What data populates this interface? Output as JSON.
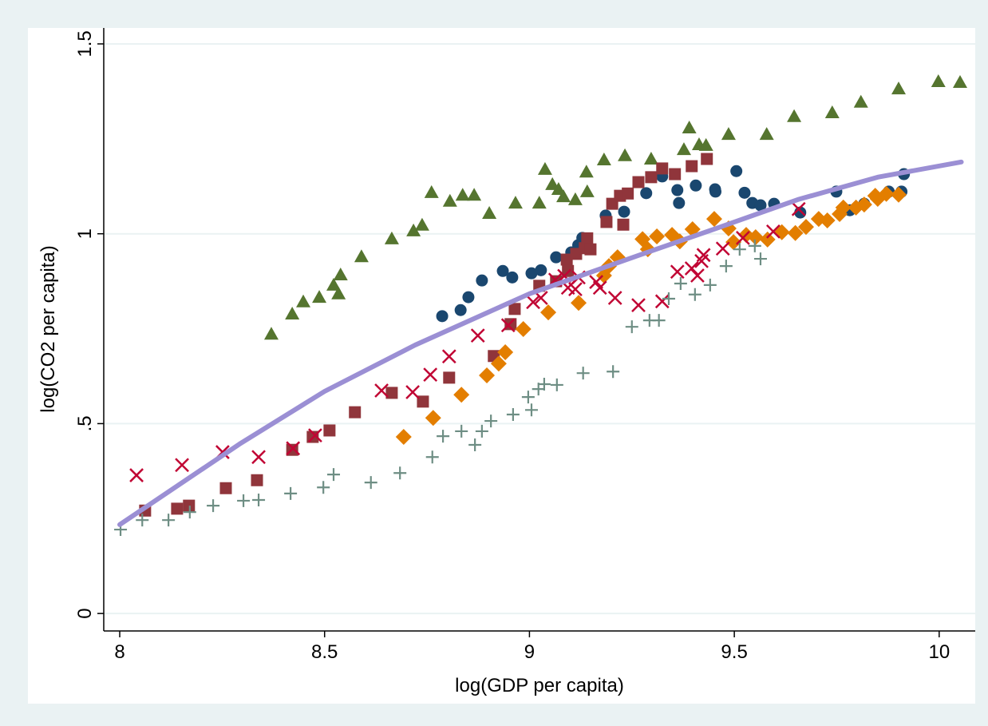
{
  "chart_data": {
    "type": "scatter",
    "x_label": "log(GDP per capita)",
    "y_label": "log(CO2 per capita)",
    "xlim": [
      7.961,
      10.088
    ],
    "ylim": [
      -0.046,
      1.542
    ],
    "xticks": [
      8,
      8.5,
      9,
      9.5,
      10
    ],
    "yticks": [
      0,
      {
        "value": 0.5,
        "label": ".5"
      },
      1,
      1.5
    ],
    "grid": true,
    "series": [
      {
        "marker": "triangle",
        "color": "#55752f",
        "x": [
          8.37,
          8.421,
          8.448,
          8.487,
          8.522,
          8.534,
          8.539,
          8.59,
          8.664,
          8.717,
          8.738,
          8.761,
          8.806,
          8.837,
          8.865,
          8.902,
          8.966,
          9.024,
          9.038,
          9.056,
          9.071,
          9.083,
          9.112,
          9.139,
          9.141,
          9.182,
          9.233,
          9.297,
          9.377,
          9.39,
          9.414,
          9.431,
          9.486,
          9.579,
          9.646,
          9.739,
          9.809,
          9.901,
          9.998,
          10.051
        ],
        "values": [
          0.736,
          0.789,
          0.821,
          0.833,
          0.865,
          0.842,
          0.892,
          0.94,
          0.987,
          1.008,
          1.023,
          1.109,
          1.086,
          1.102,
          1.102,
          1.054,
          1.081,
          1.081,
          1.17,
          1.13,
          1.117,
          1.098,
          1.09,
          1.163,
          1.111,
          1.195,
          1.206,
          1.197,
          1.222,
          1.279,
          1.235,
          1.233,
          1.262,
          1.262,
          1.309,
          1.319,
          1.347,
          1.382,
          1.401,
          1.399
        ]
      },
      {
        "marker": "circle",
        "color": "#1a476f",
        "x": [
          8.787,
          8.832,
          8.851,
          8.884,
          8.935,
          8.958,
          9.005,
          9.028,
          9.065,
          9.102,
          9.119,
          9.129,
          9.186,
          9.231,
          9.285,
          9.324,
          9.361,
          9.365,
          9.406,
          9.453,
          9.454,
          9.505,
          9.525,
          9.544,
          9.564,
          9.597,
          9.661,
          9.749,
          9.782,
          9.817,
          9.85,
          9.877,
          9.908,
          9.914
        ],
        "values": [
          0.783,
          0.799,
          0.833,
          0.877,
          0.902,
          0.885,
          0.896,
          0.904,
          0.938,
          0.951,
          0.97,
          0.989,
          1.048,
          1.058,
          1.107,
          1.151,
          1.115,
          1.081,
          1.127,
          1.117,
          1.111,
          1.165,
          1.108,
          1.081,
          1.075,
          1.079,
          1.056,
          1.111,
          1.062,
          1.079,
          1.094,
          1.111,
          1.111,
          1.157
        ]
      },
      {
        "marker": "square",
        "color": "#90353b",
        "x": [
          8.062,
          8.14,
          8.169,
          8.259,
          8.335,
          8.421,
          8.471,
          8.512,
          8.574,
          8.664,
          8.74,
          8.804,
          8.913,
          8.954,
          8.964,
          9.024,
          9.065,
          9.091,
          9.094,
          9.114,
          9.135,
          9.141,
          9.149,
          9.188,
          9.202,
          9.221,
          9.229,
          9.24,
          9.266,
          9.297,
          9.324,
          9.355,
          9.396,
          9.433
        ],
        "values": [
          0.271,
          0.276,
          0.284,
          0.33,
          0.351,
          0.431,
          0.465,
          0.482,
          0.53,
          0.581,
          0.558,
          0.621,
          0.678,
          0.762,
          0.802,
          0.863,
          0.875,
          0.932,
          0.902,
          0.947,
          0.962,
          0.988,
          0.959,
          1.031,
          1.079,
          1.1,
          1.024,
          1.106,
          1.136,
          1.149,
          1.172,
          1.157,
          1.178,
          1.197
        ]
      },
      {
        "marker": "diamond",
        "color": "#e37e00",
        "x": [
          8.693,
          8.765,
          8.834,
          8.896,
          8.925,
          8.941,
          8.985,
          9.046,
          9.12,
          9.182,
          9.194,
          9.215,
          9.276,
          9.289,
          9.311,
          9.348,
          9.367,
          9.398,
          9.451,
          9.486,
          9.498,
          9.529,
          9.552,
          9.581,
          9.616,
          9.649,
          9.675,
          9.706,
          9.727,
          9.757,
          9.766,
          9.797,
          9.817,
          9.844,
          9.85,
          9.871,
          9.901
        ],
        "values": [
          0.465,
          0.515,
          0.576,
          0.627,
          0.658,
          0.688,
          0.749,
          0.793,
          0.818,
          0.89,
          0.915,
          0.938,
          0.986,
          0.959,
          0.993,
          0.997,
          0.98,
          1.012,
          1.039,
          1.014,
          0.978,
          0.997,
          0.991,
          0.985,
          1.004,
          1.002,
          1.018,
          1.039,
          1.035,
          1.052,
          1.069,
          1.069,
          1.077,
          1.1,
          1.092,
          1.105,
          1.103
        ]
      },
      {
        "marker": "x",
        "color": "#c10534",
        "x": [
          8.041,
          8.152,
          8.251,
          8.339,
          8.423,
          8.477,
          8.639,
          8.715,
          8.758,
          8.804,
          8.874,
          8.948,
          9.009,
          9.028,
          9.063,
          9.085,
          9.094,
          9.112,
          9.12,
          9.163,
          9.172,
          9.209,
          9.266,
          9.324,
          9.361,
          9.396,
          9.41,
          9.42,
          9.425,
          9.472,
          9.521,
          9.595,
          9.657
        ],
        "values": [
          0.364,
          0.391,
          0.425,
          0.412,
          0.435,
          0.469,
          0.587,
          0.583,
          0.629,
          0.677,
          0.732,
          0.759,
          0.82,
          0.831,
          0.879,
          0.889,
          0.858,
          0.854,
          0.885,
          0.873,
          0.858,
          0.831,
          0.812,
          0.822,
          0.9,
          0.909,
          0.89,
          0.928,
          0.944,
          0.961,
          0.989,
          1.006,
          1.065
        ]
      },
      {
        "marker": "plus",
        "color": "#6e8e84",
        "x": [
          8.002,
          8.055,
          8.119,
          8.171,
          8.228,
          8.302,
          8.339,
          8.417,
          8.497,
          8.522,
          8.613,
          8.684,
          8.763,
          8.789,
          8.834,
          8.867,
          8.884,
          8.906,
          8.96,
          8.997,
          9.005,
          9.022,
          9.036,
          9.067,
          9.131,
          9.204,
          9.25,
          9.293,
          9.316,
          9.34,
          9.369,
          9.404,
          9.441,
          9.48,
          9.513,
          9.55,
          9.564
        ],
        "values": [
          0.221,
          0.246,
          0.246,
          0.267,
          0.284,
          0.297,
          0.299,
          0.316,
          0.332,
          0.366,
          0.345,
          0.37,
          0.412,
          0.467,
          0.48,
          0.444,
          0.48,
          0.507,
          0.524,
          0.57,
          0.536,
          0.591,
          0.604,
          0.602,
          0.633,
          0.637,
          0.755,
          0.772,
          0.772,
          0.829,
          0.869,
          0.84,
          0.865,
          0.915,
          0.959,
          0.968,
          0.934
        ]
      },
      {
        "type": "line",
        "color": "#9b8fd4",
        "x": [
          8.0,
          8.292,
          8.5,
          8.721,
          9.0,
          9.266,
          9.461,
          9.655,
          9.85,
          10.054
        ],
        "values": [
          0.234,
          0.446,
          0.585,
          0.707,
          0.842,
          0.943,
          1.016,
          1.09,
          1.149,
          1.189
        ]
      }
    ]
  }
}
